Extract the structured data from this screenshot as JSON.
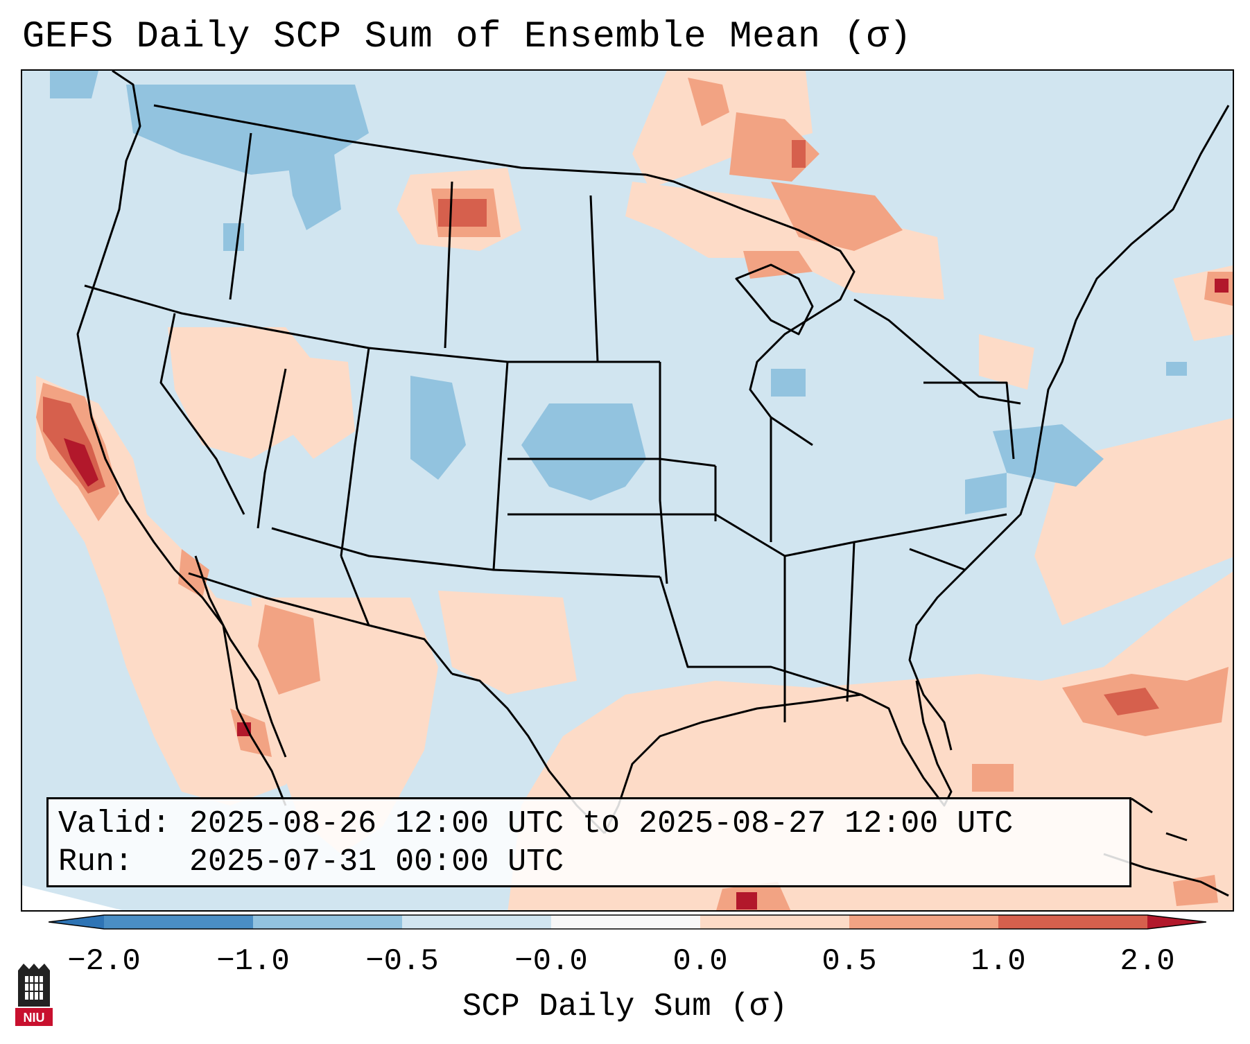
{
  "title": "GEFS Daily SCP Sum of Ensemble Mean (σ)",
  "info": {
    "valid_label": "Valid:",
    "valid_value": "2025-08-26 12:00 UTC to 2025-08-27 12:00 UTC",
    "run_label": "Run:",
    "run_value": "2025-07-31 00:00 UTC"
  },
  "colorbar": {
    "label": "SCP Daily Sum (σ)",
    "boundaries": [
      -2.0,
      -1.0,
      -0.5,
      -0.0,
      0.0,
      0.5,
      1.0,
      2.0
    ],
    "tick_labels": [
      "−2.0",
      "−1.0",
      "−0.5",
      "−0.0",
      "0.0",
      "0.5",
      "1.0",
      "2.0"
    ],
    "colors": [
      "#4a8ec4",
      "#92c3df",
      "#d1e5f0",
      "#f7f7f7",
      "#fddbc7",
      "#f2a383",
      "#d6604d"
    ],
    "under_color": "#2e74b5",
    "over_color": "#b2182b"
  },
  "logo": {
    "text": "NIU"
  },
  "map": {
    "region": "Continental United States",
    "background_anomaly_color": "#d1e5f0",
    "positive_anomaly_areas": [
      "California coast",
      "Northern Minnesota / Upper Michigan",
      "Southeast Montana",
      "Gulf of Mexico",
      "Western Atlantic",
      "Northwest Mexico"
    ],
    "negative_anomaly_areas": [
      "Pacific Northwest",
      "Central Colorado",
      "Kansas",
      "Virginia / Chesapeake"
    ]
  }
}
